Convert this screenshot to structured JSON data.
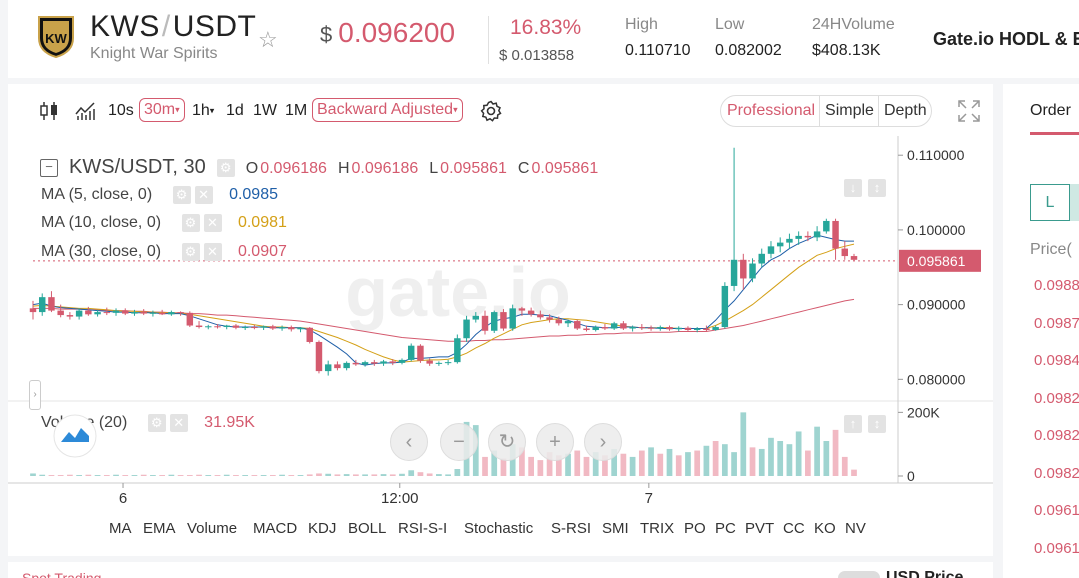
{
  "header": {
    "base": "KWS",
    "quote": "USDT",
    "full_name": "Knight War Spirits",
    "price_currency": "$",
    "price": "0.096200",
    "change_pct": "16.83%",
    "change_abs": "$ 0.013858",
    "high_label": "High",
    "high_value": "0.110710",
    "low_label": "Low",
    "low_value": "0.082002",
    "vol_label": "24HVolume",
    "vol_value": "$408.13K",
    "hodl": "Gate.io HODL & E"
  },
  "toolbar": {
    "intervals": [
      "10s",
      "30m",
      "1h",
      "1d",
      "1W",
      "1M"
    ],
    "active_interval": "30m",
    "adjust": "Backward Adjusted",
    "modes": [
      "Professional",
      "Simple",
      "Depth"
    ],
    "active_mode": "Professional"
  },
  "legend": {
    "symbol": "KWS/USDT, 30",
    "o_label": "O",
    "o": "0.096186",
    "h_label": "H",
    "h": "0.096186",
    "l_label": "L",
    "l": "0.095861",
    "c_label": "C",
    "c": "0.095861",
    "ma5": "MA (5, close, 0)",
    "ma5_val": "0.0985",
    "ma10": "MA (10, close, 0)",
    "ma10_val": "0.0981",
    "ma30": "MA (30, close, 0)",
    "ma30_val": "0.0907",
    "volume": "Volume (20)",
    "volume_val": "31.95K"
  },
  "price_axis": [
    "0.110000",
    "0.100000",
    "0.095861",
    "0.090000",
    "0.080000"
  ],
  "volume_axis": [
    "200K",
    "0"
  ],
  "time_axis": [
    "6",
    "12:00",
    "7"
  ],
  "indicators": [
    "MA",
    "EMA",
    "Volume",
    "MACD",
    "KDJ",
    "BOLL",
    "RSI-S-I",
    "Stochastic",
    "S-RSI",
    "SMI",
    "TRIX",
    "PO",
    "PC",
    "PVT",
    "CC",
    "KO",
    "NV"
  ],
  "watermark": "gate.io",
  "order_panel": {
    "tab": "Order",
    "l_button": "L",
    "price_label": "Price(",
    "prices": [
      "0.0988",
      "0.0987",
      "0.0984",
      "0.0982",
      "0.0982",
      "0.0982",
      "0.0961",
      "0.0961"
    ]
  },
  "bottom": {
    "left_text": "Spot Trading",
    "right_text": "USD Price"
  },
  "colors": {
    "up": "#26a69a",
    "down": "#d45a6e",
    "ma5": "#1f5fa8",
    "ma10": "#d4a017",
    "ma30": "#d45a6e",
    "accent": "#d45a6e"
  },
  "chart_data": {
    "type": "candlestick",
    "title": "KWS/USDT, 30",
    "ylim": [
      0.0775,
      0.1115
    ],
    "candles": [
      [
        0.0895,
        0.0905,
        0.088,
        0.089
      ],
      [
        0.089,
        0.0915,
        0.0885,
        0.091
      ],
      [
        0.091,
        0.0918,
        0.089,
        0.0892
      ],
      [
        0.0892,
        0.09,
        0.0883,
        0.0886
      ],
      [
        0.0886,
        0.089,
        0.088,
        0.0884
      ],
      [
        0.0884,
        0.0895,
        0.088,
        0.0892
      ],
      [
        0.0892,
        0.0897,
        0.0885,
        0.0887
      ],
      [
        0.0887,
        0.0893,
        0.0884,
        0.089
      ],
      [
        0.089,
        0.0896,
        0.0886,
        0.0889
      ],
      [
        0.0889,
        0.0895,
        0.0885,
        0.0892
      ],
      [
        0.0892,
        0.0895,
        0.0886,
        0.0888
      ],
      [
        0.0888,
        0.0893,
        0.0885,
        0.089
      ],
      [
        0.089,
        0.0894,
        0.0886,
        0.0888
      ],
      [
        0.0888,
        0.0892,
        0.0884,
        0.0889
      ],
      [
        0.0889,
        0.0893,
        0.0886,
        0.0887
      ],
      [
        0.0887,
        0.0892,
        0.0885,
        0.089
      ],
      [
        0.089,
        0.0891,
        0.0885,
        0.0889
      ],
      [
        0.0889,
        0.0891,
        0.087,
        0.0872
      ],
      [
        0.0872,
        0.0878,
        0.0868,
        0.087
      ],
      [
        0.087,
        0.0873,
        0.0867,
        0.0871
      ],
      [
        0.0871,
        0.0874,
        0.0868,
        0.087
      ],
      [
        0.087,
        0.0873,
        0.0867,
        0.0872
      ],
      [
        0.0872,
        0.0874,
        0.0867,
        0.0869
      ],
      [
        0.0869,
        0.0872,
        0.0866,
        0.087
      ],
      [
        0.087,
        0.0873,
        0.0867,
        0.0869
      ],
      [
        0.0869,
        0.0872,
        0.0866,
        0.0871
      ],
      [
        0.0871,
        0.0873,
        0.0866,
        0.0868
      ],
      [
        0.0868,
        0.0872,
        0.0865,
        0.087
      ],
      [
        0.087,
        0.0872,
        0.0864,
        0.0867
      ],
      [
        0.0867,
        0.087,
        0.0863,
        0.0869
      ],
      [
        0.0869,
        0.087,
        0.0848,
        0.085
      ],
      [
        0.085,
        0.0852,
        0.0808,
        0.0811
      ],
      [
        0.0811,
        0.0825,
        0.0805,
        0.082
      ],
      [
        0.082,
        0.0824,
        0.0812,
        0.0815
      ],
      [
        0.0815,
        0.0824,
        0.0812,
        0.0822
      ],
      [
        0.0822,
        0.0826,
        0.0818,
        0.082
      ],
      [
        0.082,
        0.0825,
        0.0817,
        0.0823
      ],
      [
        0.0823,
        0.0826,
        0.0818,
        0.0821
      ],
      [
        0.0821,
        0.0826,
        0.0818,
        0.0824
      ],
      [
        0.0824,
        0.0827,
        0.0819,
        0.0822
      ],
      [
        0.0822,
        0.0828,
        0.082,
        0.0826
      ],
      [
        0.0826,
        0.0848,
        0.0824,
        0.0845
      ],
      [
        0.0845,
        0.0847,
        0.0822,
        0.0825
      ],
      [
        0.0825,
        0.0828,
        0.0818,
        0.0821
      ],
      [
        0.0821,
        0.0824,
        0.0818,
        0.0822
      ],
      [
        0.0822,
        0.0826,
        0.0819,
        0.0823
      ],
      [
        0.0823,
        0.086,
        0.0821,
        0.0855
      ],
      [
        0.0855,
        0.0885,
        0.085,
        0.088
      ],
      [
        0.088,
        0.089,
        0.0876,
        0.0885
      ],
      [
        0.0885,
        0.0892,
        0.086,
        0.0865
      ],
      [
        0.0865,
        0.0892,
        0.0862,
        0.089
      ],
      [
        0.089,
        0.0894,
        0.0865,
        0.0868
      ],
      [
        0.0868,
        0.09,
        0.0865,
        0.0895
      ],
      [
        0.0895,
        0.0897,
        0.0885,
        0.0892
      ],
      [
        0.0892,
        0.0896,
        0.0884,
        0.0887
      ],
      [
        0.0887,
        0.0892,
        0.088,
        0.0883
      ],
      [
        0.0883,
        0.0887,
        0.0876,
        0.088
      ],
      [
        0.088,
        0.0884,
        0.0872,
        0.0875
      ],
      [
        0.0875,
        0.088,
        0.087,
        0.0878
      ],
      [
        0.0878,
        0.088,
        0.0866,
        0.0868
      ],
      [
        0.0868,
        0.0872,
        0.0864,
        0.0866
      ],
      [
        0.0866,
        0.0872,
        0.0864,
        0.087
      ],
      [
        0.087,
        0.0874,
        0.0866,
        0.0868
      ],
      [
        0.0868,
        0.0877,
        0.0866,
        0.0875
      ],
      [
        0.0875,
        0.0878,
        0.0866,
        0.0868
      ],
      [
        0.0868,
        0.0872,
        0.0864,
        0.087
      ],
      [
        0.087,
        0.0874,
        0.0866,
        0.0869
      ],
      [
        0.0869,
        0.0872,
        0.0865,
        0.0868
      ],
      [
        0.0868,
        0.0872,
        0.0865,
        0.087
      ],
      [
        0.087,
        0.0872,
        0.0865,
        0.0867
      ],
      [
        0.0867,
        0.0871,
        0.0864,
        0.0869
      ],
      [
        0.0869,
        0.0871,
        0.0864,
        0.0866
      ],
      [
        0.0866,
        0.087,
        0.0863,
        0.0868
      ],
      [
        0.0868,
        0.0872,
        0.0864,
        0.0866
      ],
      [
        0.0866,
        0.0872,
        0.0865,
        0.087
      ],
      [
        0.087,
        0.093,
        0.0868,
        0.0925
      ],
      [
        0.0925,
        0.111,
        0.0918,
        0.096
      ],
      [
        0.096,
        0.0968,
        0.092,
        0.0935
      ],
      [
        0.0935,
        0.0962,
        0.093,
        0.0955
      ],
      [
        0.0955,
        0.0975,
        0.095,
        0.0968
      ],
      [
        0.0968,
        0.0985,
        0.0962,
        0.0978
      ],
      [
        0.0978,
        0.099,
        0.097,
        0.0983
      ],
      [
        0.0983,
        0.0995,
        0.0975,
        0.0988
      ],
      [
        0.0988,
        0.0998,
        0.098,
        0.0992
      ],
      [
        0.0992,
        0.0998,
        0.0985,
        0.099
      ],
      [
        0.099,
        0.1005,
        0.0985,
        0.0998
      ],
      [
        0.0998,
        0.1015,
        0.0995,
        0.1012
      ],
      [
        0.1012,
        0.1015,
        0.096,
        0.0975
      ],
      [
        0.0975,
        0.0985,
        0.096,
        0.0965
      ],
      [
        0.0965,
        0.0968,
        0.0958,
        0.096
      ]
    ],
    "volumes": [
      8,
      4,
      3,
      3,
      4,
      3,
      4,
      3,
      3,
      4,
      3,
      3,
      4,
      3,
      3,
      4,
      3,
      3,
      4,
      3,
      3,
      4,
      3,
      3,
      3,
      3,
      3,
      4,
      3,
      3,
      5,
      8,
      7,
      5,
      6,
      5,
      5,
      5,
      6,
      5,
      7,
      18,
      12,
      8,
      6,
      5,
      22,
      170,
      160,
      60,
      80,
      55,
      100,
      90,
      60,
      50,
      75,
      65,
      70,
      80,
      60,
      75,
      65,
      85,
      70,
      60,
      80,
      90,
      70,
      85,
      65,
      75,
      80,
      95,
      110,
      100,
      75,
      200,
      90,
      85,
      120,
      110,
      100,
      140,
      80,
      155,
      110,
      145,
      60,
      20
    ],
    "volume_colors_up": [
      true,
      true,
      false,
      false,
      false,
      true,
      false,
      true,
      false,
      true,
      false,
      true,
      false,
      true,
      false,
      true,
      false,
      false,
      false,
      true,
      false,
      true,
      false,
      true,
      false,
      true,
      false,
      true,
      false,
      true,
      false,
      false,
      true,
      false,
      true,
      false,
      true,
      false,
      true,
      false,
      true,
      true,
      false,
      false,
      true,
      true,
      true,
      true,
      true,
      false,
      true,
      false,
      true,
      false,
      false,
      false,
      false,
      false,
      true,
      false,
      false,
      true,
      false,
      true,
      false,
      true,
      false,
      true,
      false,
      true,
      false,
      true,
      false,
      true,
      false,
      true,
      true,
      true,
      false,
      true,
      true,
      true,
      true,
      true,
      false,
      true,
      true,
      false,
      false,
      false
    ],
    "ma5": [
      0.09,
      0.0902,
      0.0898,
      0.0896,
      0.0895,
      0.0894,
      0.0893,
      0.0892,
      0.0891,
      0.089,
      0.089,
      0.0889,
      0.0889,
      0.0889,
      0.0888,
      0.0888,
      0.0888,
      0.0885,
      0.0881,
      0.0877,
      0.0873,
      0.0871,
      0.087,
      0.087,
      0.087,
      0.087,
      0.0869,
      0.0869,
      0.0869,
      0.0869,
      0.0866,
      0.0859,
      0.0851,
      0.0843,
      0.0834,
      0.0822,
      0.0819,
      0.0821,
      0.0822,
      0.0822,
      0.0823,
      0.0828,
      0.0828,
      0.0829,
      0.083,
      0.083,
      0.0836,
      0.0847,
      0.086,
      0.087,
      0.0878,
      0.0881,
      0.0883,
      0.0887,
      0.0887,
      0.0886,
      0.0885,
      0.0882,
      0.0879,
      0.0875,
      0.0871,
      0.087,
      0.0869,
      0.0869,
      0.087,
      0.087,
      0.0869,
      0.0869,
      0.0868,
      0.0868,
      0.0868,
      0.0868,
      0.0868,
      0.0868,
      0.0879,
      0.0893,
      0.0905,
      0.092,
      0.0935,
      0.095,
      0.096,
      0.0966,
      0.0975,
      0.0982,
      0.0987,
      0.0993,
      0.099,
      0.0987,
      0.0985,
      0.0985
    ],
    "ma10": [
      0.0898,
      0.0899,
      0.0898,
      0.0897,
      0.0896,
      0.0895,
      0.0895,
      0.0894,
      0.0893,
      0.0892,
      0.0891,
      0.0891,
      0.089,
      0.089,
      0.0889,
      0.0889,
      0.0888,
      0.0887,
      0.0885,
      0.0883,
      0.0881,
      0.0879,
      0.0877,
      0.0875,
      0.0873,
      0.0871,
      0.087,
      0.087,
      0.0869,
      0.0869,
      0.0868,
      0.0864,
      0.086,
      0.0856,
      0.0851,
      0.0846,
      0.084,
      0.0835,
      0.083,
      0.0826,
      0.0823,
      0.0824,
      0.0825,
      0.0826,
      0.0826,
      0.0827,
      0.083,
      0.0835,
      0.0842,
      0.0848,
      0.0855,
      0.0861,
      0.0867,
      0.0873,
      0.0876,
      0.0878,
      0.088,
      0.0881,
      0.0881,
      0.088,
      0.0879,
      0.0877,
      0.0875,
      0.0873,
      0.0871,
      0.087,
      0.0869,
      0.0869,
      0.0869,
      0.0869,
      0.0868,
      0.0868,
      0.0868,
      0.0868,
      0.0872,
      0.0878,
      0.0885,
      0.0892,
      0.09,
      0.091,
      0.092,
      0.093,
      0.094,
      0.095,
      0.0958,
      0.0966,
      0.097,
      0.0975,
      0.0978,
      0.0981
    ],
    "ma30": [
      0.0895,
      0.0895,
      0.0895,
      0.0894,
      0.0894,
      0.0894,
      0.0893,
      0.0893,
      0.0892,
      0.0892,
      0.0892,
      0.0891,
      0.0891,
      0.089,
      0.089,
      0.0889,
      0.0889,
      0.0888,
      0.0888,
      0.0887,
      0.0886,
      0.0886,
      0.0885,
      0.0884,
      0.0883,
      0.0882,
      0.0881,
      0.088,
      0.0879,
      0.0878,
      0.0876,
      0.0874,
      0.0872,
      0.087,
      0.0868,
      0.0866,
      0.0864,
      0.0862,
      0.086,
      0.0858,
      0.0856,
      0.0855,
      0.0854,
      0.0853,
      0.0852,
      0.0851,
      0.0851,
      0.0851,
      0.0852,
      0.0852,
      0.0853,
      0.0853,
      0.0854,
      0.0855,
      0.0856,
      0.0857,
      0.0858,
      0.0858,
      0.0859,
      0.0859,
      0.086,
      0.086,
      0.0861,
      0.0861,
      0.0862,
      0.0862,
      0.0862,
      0.0863,
      0.0863,
      0.0863,
      0.0864,
      0.0864,
      0.0864,
      0.0864,
      0.0866,
      0.0868,
      0.087,
      0.0872,
      0.0875,
      0.0878,
      0.0881,
      0.0884,
      0.0887,
      0.089,
      0.0893,
      0.0896,
      0.0899,
      0.0902,
      0.0905,
      0.0907
    ]
  }
}
